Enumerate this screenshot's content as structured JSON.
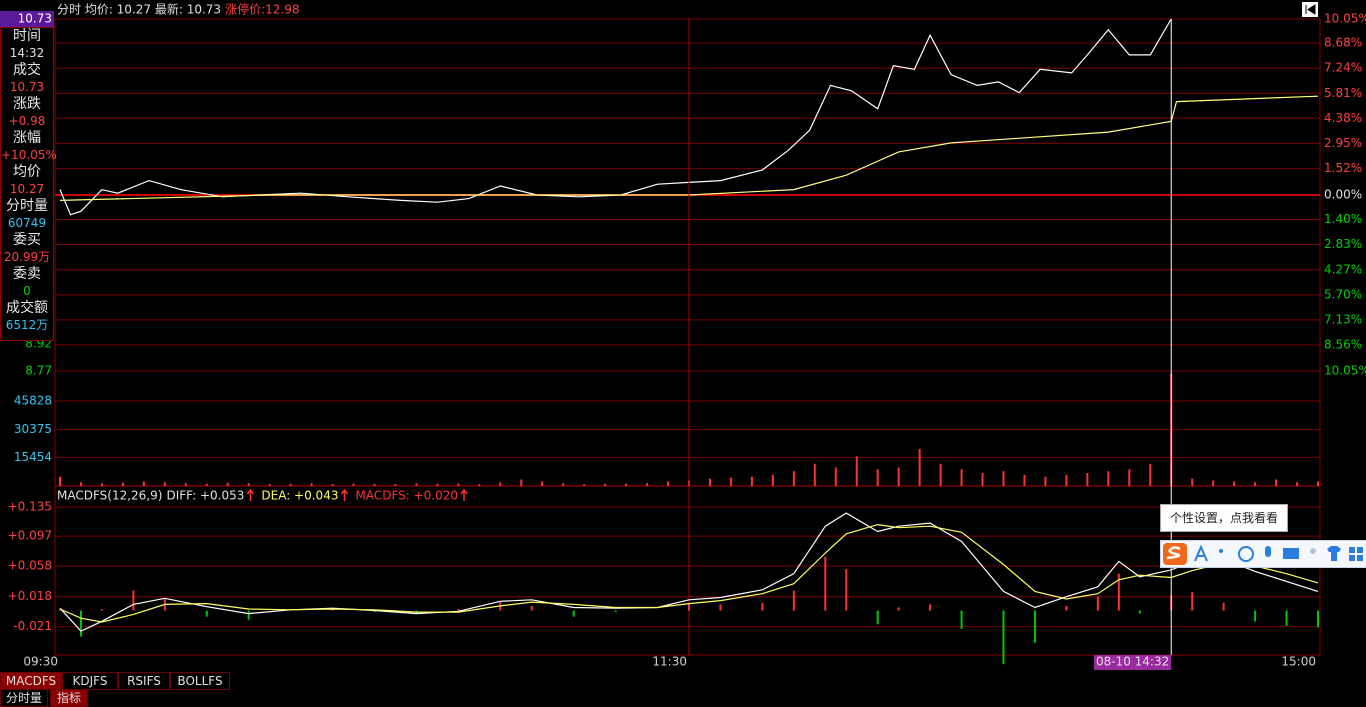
{
  "header": {
    "text": "分时 均价: 10.27 最新: 10.73",
    "limit": "涨停价:12.98"
  },
  "info": [
    {
      "label": "时间",
      "value": "14:32",
      "color": "#e0e0e0"
    },
    {
      "label": "成交",
      "value": "10.73",
      "color": "#ff4040"
    },
    {
      "label": "涨跌",
      "value": "+0.98",
      "color": "#ff4040"
    },
    {
      "label": "涨幅",
      "value": "+10.05%",
      "color": "#ff4040"
    },
    {
      "label": "均价",
      "value": "10.27",
      "color": "#ff4040"
    },
    {
      "label": "分时量",
      "value": "60749",
      "color": "#33c4f0"
    },
    {
      "label": "委买",
      "value": "20.99万",
      "color": "#ff4040"
    },
    {
      "label": "委卖",
      "value": "0",
      "color": "#00d000"
    },
    {
      "label": "成交额",
      "value": "6512万",
      "color": "#33c4f0"
    }
  ],
  "chart_data": [
    {
      "type": "line",
      "xlim": [
        0,
        240
      ],
      "ylim": [
        8.77,
        10.73
      ],
      "yticks": [
        8.77,
        8.92
      ],
      "y2lim": [
        -10.05,
        10.05
      ],
      "y2ticks": [
        {
          "value": 10.05,
          "label": "10.05%"
        },
        {
          "value": 8.68,
          "label": "8.68%"
        },
        {
          "value": 7.24,
          "label": "7.24%"
        },
        {
          "value": 5.81,
          "label": "5.81%"
        },
        {
          "value": 4.38,
          "label": "4.38%"
        },
        {
          "value": 2.95,
          "label": "2.95%"
        },
        {
          "value": 1.52,
          "label": "1.52%"
        },
        {
          "value": 0,
          "label": "0.00%"
        },
        {
          "value": -1.4,
          "label": "1.40%"
        },
        {
          "value": -2.83,
          "label": "2.83%"
        },
        {
          "value": -4.27,
          "label": "4.27%"
        },
        {
          "value": -5.7,
          "label": "5.70%"
        },
        {
          "value": -7.13,
          "label": "7.13%"
        },
        {
          "value": -8.56,
          "label": "8.56%"
        },
        {
          "value": -10.05,
          "label": "10.05%"
        }
      ],
      "grid": true,
      "series": [
        {
          "color": "#ffffff",
          "x": [
            0,
            2,
            4,
            8,
            11,
            17,
            23,
            31,
            38,
            46,
            55,
            65,
            72,
            78,
            84,
            91,
            99,
            107,
            114,
            120,
            126,
            134,
            139,
            143,
            147,
            151,
            156,
            159,
            163,
            166,
            170,
            175,
            179,
            183,
            187,
            193,
            196,
            200,
            204,
            208,
            212
          ],
          "values": [
            9.78,
            9.64,
            9.66,
            9.78,
            9.76,
            9.83,
            9.78,
            9.74,
            9.75,
            9.76,
            9.74,
            9.72,
            9.71,
            9.73,
            9.8,
            9.75,
            9.74,
            9.75,
            9.81,
            9.82,
            9.83,
            9.89,
            10.0,
            10.11,
            10.36,
            10.33,
            10.23,
            10.47,
            10.45,
            10.64,
            10.42,
            10.36,
            10.38,
            10.32,
            10.45,
            10.43,
            10.53,
            10.67,
            10.53,
            10.53,
            10.73
          ]
        },
        {
          "color": "#ffff80",
          "x": [
            0,
            40,
            120,
            140,
            150,
            160,
            170,
            180,
            200,
            212,
            213,
            240
          ],
          "values": [
            9.72,
            9.75,
            9.75,
            9.78,
            9.86,
            9.99,
            10.04,
            10.06,
            10.1,
            10.16,
            10.27,
            10.3
          ]
        }
      ]
    },
    {
      "type": "bar",
      "xlim": [
        0,
        240
      ],
      "ylim": [
        0,
        62000
      ],
      "yticks": [
        15454,
        30375,
        45828
      ],
      "grid": true,
      "color": "#ff3232",
      "x": [
        0,
        4,
        8,
        12,
        16,
        20,
        24,
        28,
        32,
        36,
        40,
        44,
        48,
        52,
        56,
        60,
        64,
        68,
        72,
        76,
        80,
        84,
        88,
        92,
        96,
        100,
        104,
        108,
        112,
        116,
        120,
        124,
        128,
        132,
        136,
        140,
        144,
        148,
        152,
        156,
        160,
        164,
        168,
        172,
        176,
        180,
        184,
        188,
        192,
        196,
        200,
        204,
        208,
        212,
        216,
        220,
        224,
        228,
        232,
        236,
        240
      ],
      "values": [
        5000,
        2000,
        1500,
        1800,
        2500,
        2000,
        1500,
        1200,
        1800,
        1500,
        1000,
        1200,
        1500,
        1000,
        1300,
        1100,
        1000,
        1500,
        1200,
        1400,
        1000,
        2000,
        3500,
        2500,
        1500,
        1000,
        1200,
        1300,
        1500,
        2500,
        3000,
        4000,
        4500,
        5000,
        6000,
        8000,
        12000,
        10000,
        16000,
        9000,
        10000,
        20000,
        12000,
        9000,
        7000,
        8000,
        6000,
        5000,
        6000,
        7000,
        8000,
        9000,
        12000,
        60749,
        4000,
        3000,
        2500,
        2000,
        3500,
        2000,
        2500
      ]
    },
    {
      "type": "macd",
      "title": "MACDFS(12,26,9)",
      "xlim": [
        0,
        240
      ],
      "ylim": [
        -0.058,
        0.135
      ],
      "yticks": [
        {
          "value": 0.135,
          "label": "+0.135"
        },
        {
          "value": 0.097,
          "label": "+0.097"
        },
        {
          "value": 0.058,
          "label": "+0.058"
        },
        {
          "value": 0.018,
          "label": "+0.018"
        },
        -0.021
      ],
      "xticks": [
        {
          "value": 0,
          "label": "09:30"
        },
        {
          "value": 120,
          "label": "11:30"
        },
        {
          "value": 240,
          "label": "15:00"
        }
      ],
      "grid": true,
      "x": [
        0,
        4,
        8,
        14,
        20,
        28,
        36,
        44,
        52,
        60,
        68,
        76,
        84,
        90,
        98,
        106,
        114,
        120,
        126,
        134,
        140,
        146,
        150,
        156,
        160,
        166,
        172,
        180,
        186,
        192,
        198,
        202,
        206,
        212,
        216,
        222,
        228,
        234,
        240
      ],
      "series": [
        {
          "color": "#ffffff",
          "readout": "DIFF: +0.053",
          "values": [
            0.003,
            -0.027,
            -0.014,
            0.008,
            0.016,
            0.005,
            -0.004,
            0.001,
            0.003,
            0,
            -0.004,
            -0.001,
            0.012,
            0.014,
            0.004,
            0.003,
            0.004,
            0.014,
            0.017,
            0.027,
            0.048,
            0.11,
            0.127,
            0.103,
            0.11,
            0.114,
            0.09,
            0.025,
            0.004,
            0.018,
            0.031,
            0.064,
            0.044,
            0.053,
            0.064,
            0.067,
            0.051,
            0.038,
            0.025
          ]
        },
        {
          "color": "#ffff60",
          "readout": "DEA: +0.043",
          "values": [
            0.002,
            -0.01,
            -0.015,
            -0.005,
            0.008,
            0.009,
            0.002,
            0.001,
            0.002,
            0.001,
            -0.002,
            -0.002,
            0.006,
            0.011,
            0.008,
            0.004,
            0.004,
            0.009,
            0.013,
            0.022,
            0.035,
            0.075,
            0.1,
            0.112,
            0.108,
            0.11,
            0.102,
            0.06,
            0.025,
            0.015,
            0.022,
            0.04,
            0.046,
            0.043,
            0.052,
            0.062,
            0.058,
            0.048,
            0.036
          ]
        },
        {
          "color": "#ff3232",
          "negative_color": "#00c800",
          "readout": "MACDFS: +0.020",
          "values": [
            0.002,
            -0.034,
            0.002,
            0.026,
            0.016,
            -0.008,
            -0.012,
            0,
            0.002,
            -0.002,
            -0.004,
            0.002,
            0.012,
            0.006,
            -0.008,
            -0.002,
            0,
            0.01,
            0.008,
            0.01,
            0.026,
            0.07,
            0.054,
            -0.018,
            0.004,
            0.008,
            -0.024,
            -0.07,
            -0.042,
            0.006,
            0.018,
            0.048,
            -0.004,
            0.02,
            0.024,
            0.01,
            -0.014,
            -0.02,
            -0.022
          ]
        }
      ]
    }
  ],
  "cursor": {
    "x": 212,
    "label": "08-10 14:32",
    "price_label": "10.73"
  },
  "tabs": [
    "MACDFS",
    "KDJFS",
    "RSIFS",
    "BOLLFS"
  ],
  "bottom_tabs": [
    "分时量",
    "指标"
  ],
  "tooltip": "个性设置，点我看看"
}
